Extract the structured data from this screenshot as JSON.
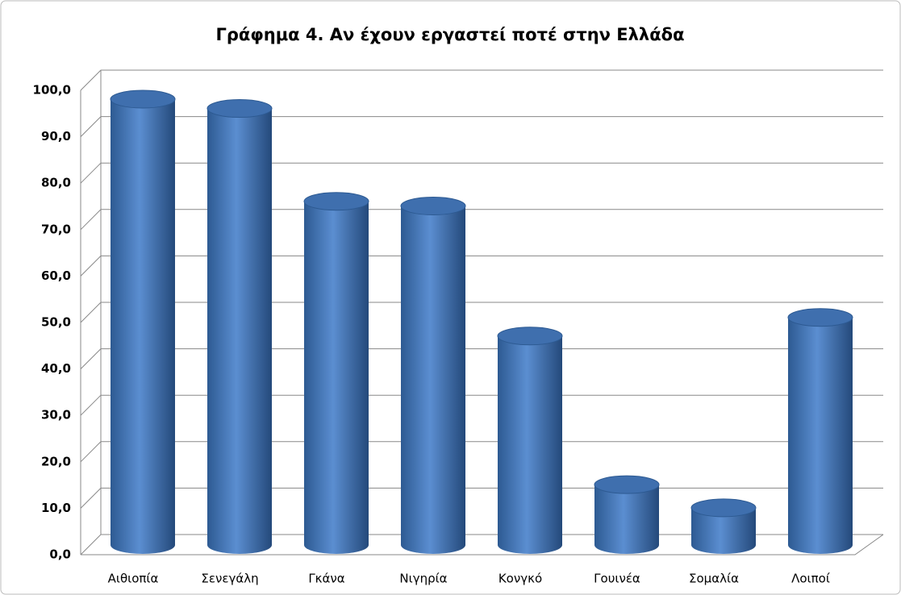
{
  "chart_data": {
    "type": "bar3d",
    "title": "Γράφημα 4. Αν έχουν εργαστεί ποτέ στην Ελλάδα",
    "categories": [
      "Αιθιοπία",
      "Σενεγάλη",
      "Γκάνα",
      "Νιγηρία",
      "Κονγκό",
      "Γουινέα",
      "Σομαλία",
      "Λοιποί"
    ],
    "values": [
      96,
      94,
      74,
      73,
      45,
      13,
      8,
      49
    ],
    "color": "#4f81bd",
    "ylim": [
      0,
      100
    ],
    "yticks": [
      {
        "value": 0,
        "label": "0,0"
      },
      {
        "value": 10,
        "label": "10,0"
      },
      {
        "value": 20,
        "label": "20,0"
      },
      {
        "value": 30,
        "label": "30,0"
      },
      {
        "value": 40,
        "label": "40,0"
      },
      {
        "value": 50,
        "label": "50,0"
      },
      {
        "value": 60,
        "label": "60,0"
      },
      {
        "value": 70,
        "label": "70,0"
      },
      {
        "value": 80,
        "label": "80,0"
      },
      {
        "value": 90,
        "label": "90,0"
      },
      {
        "value": 100,
        "label": "100,0"
      }
    ],
    "grid": true
  }
}
